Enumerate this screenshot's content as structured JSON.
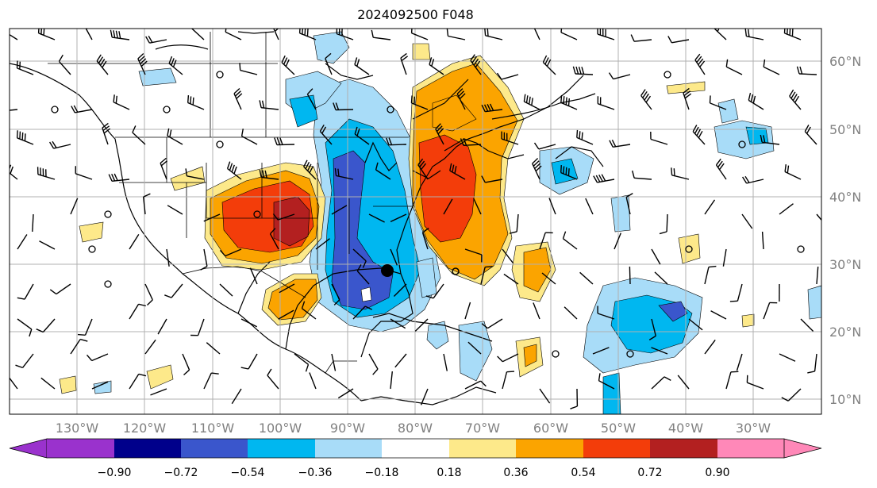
{
  "map": {
    "title": "2024092500 F048",
    "lon_ticks": [
      "130°W",
      "120°W",
      "110°W",
      "100°W",
      "90°W",
      "80°W",
      "70°W",
      "60°W",
      "50°W",
      "40°W",
      "30°W"
    ],
    "lat_ticks": [
      "60°N",
      "50°N",
      "40°N",
      "30°N",
      "20°N",
      "10°N"
    ]
  },
  "colorbar": {
    "levels": [
      "−0.90",
      "−0.72",
      "−0.54",
      "−0.36",
      "−0.18",
      "0.18",
      "0.36",
      "0.54",
      "0.72",
      "0.90"
    ],
    "colors": [
      "#9a32cd",
      "#00008b",
      "#3a56cc",
      "#00b7f0",
      "#a8dcf8",
      "#ffffff",
      "#fde98a",
      "#fba400",
      "#f33d0a",
      "#b32020",
      "#ff88b8"
    ]
  },
  "field_colors": {
    "neg_light": "#a8dcf8",
    "neg_mid": "#00b7f0",
    "neg_dark": "#3a56cc",
    "pos_light": "#fde98a",
    "pos_mid": "#fba400",
    "pos_dark": "#f33d0a",
    "pos_max": "#b32020"
  },
  "icons": {
    "wind_barb": "wind-barb-icon",
    "calm": "calm-circle-icon",
    "marker": "location-dot-icon"
  }
}
